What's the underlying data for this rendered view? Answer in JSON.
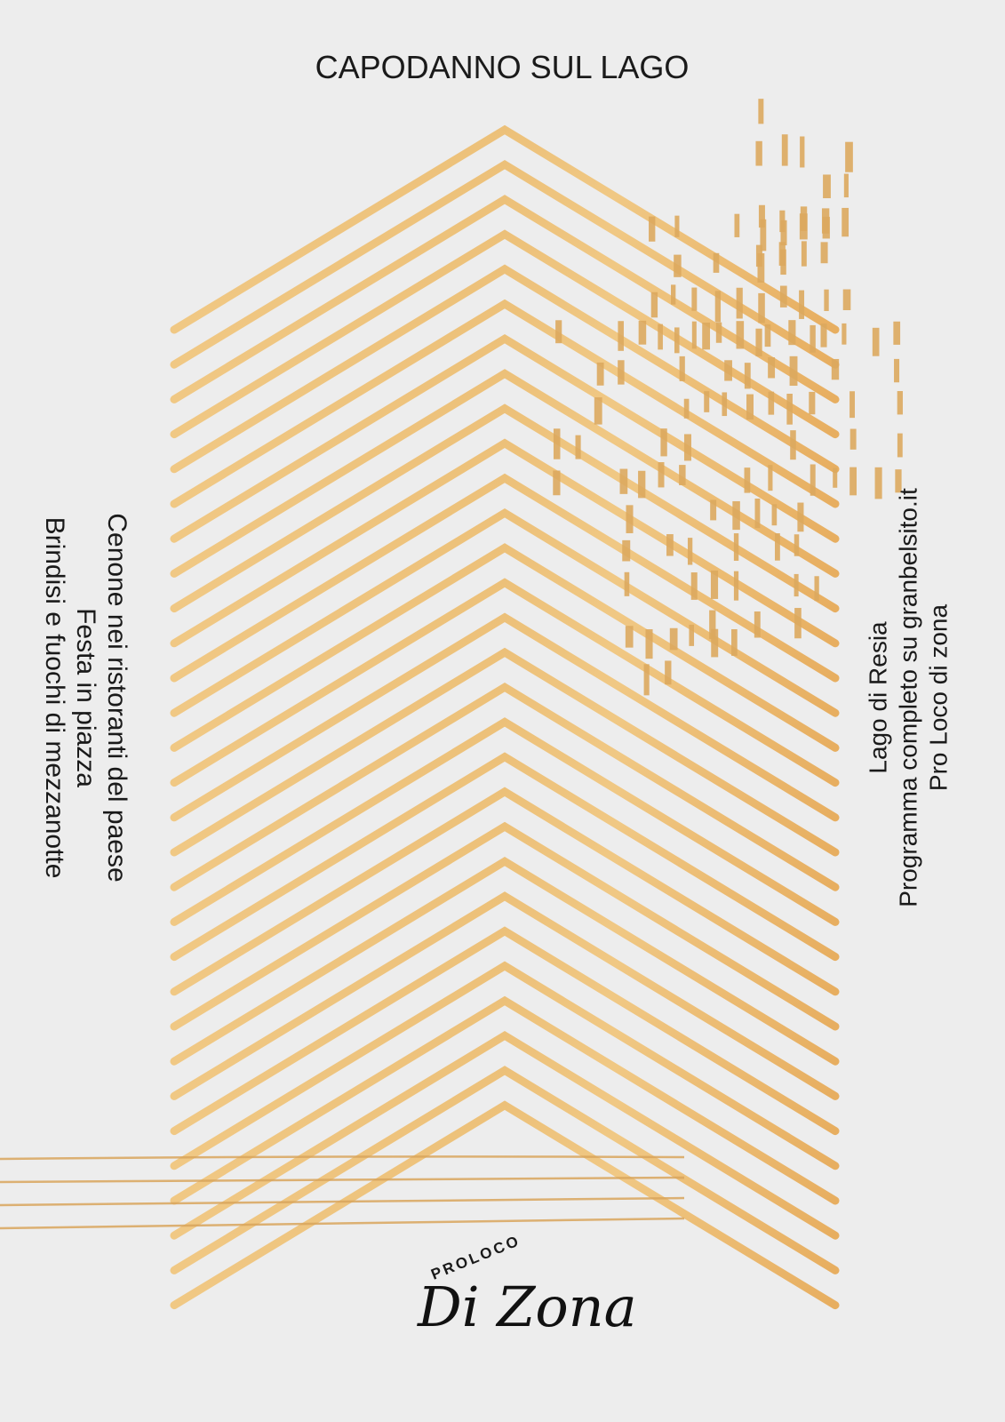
{
  "title": "CAPODANNO SUL LAGO",
  "left_text": [
    "Cenone nei ristoranti del paese",
    "Festa in piazza",
    "Brindisi e fuochi di mezzanotte"
  ],
  "right_text": [
    "Lago di Resia",
    "Programma completo su granbelsito.it",
    "Pro Loco di zona"
  ],
  "logo": {
    "small": "PROLOCO",
    "name": "Di Zona"
  }
}
